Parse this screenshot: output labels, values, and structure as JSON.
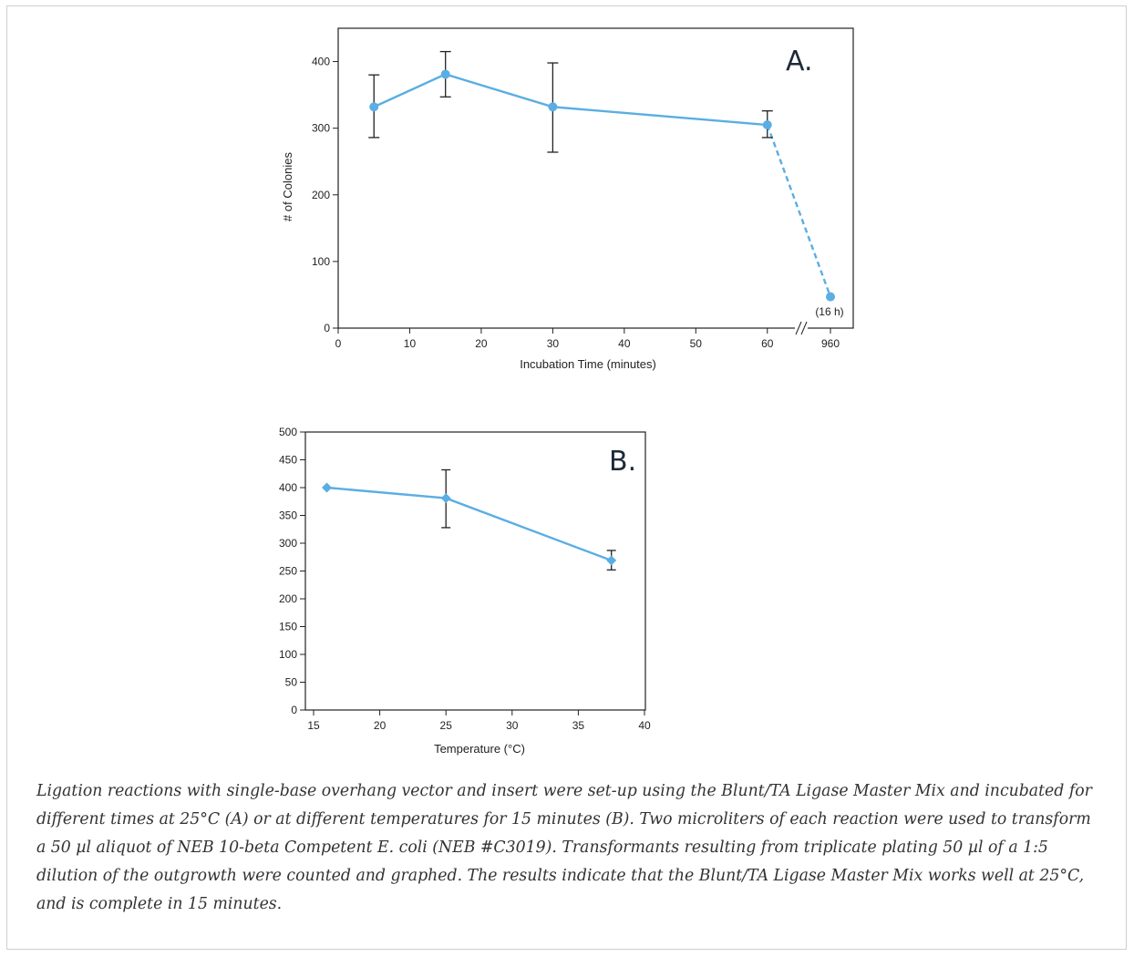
{
  "colors": {
    "series": "#5aaee3",
    "axis": "#222222",
    "errorbar": "#222222"
  },
  "chart_data": [
    {
      "type": "line",
      "panel_label": "A.",
      "xlabel": "Incubation Time (minutes)",
      "ylabel": "# of Colonies",
      "ylim": [
        0,
        450
      ],
      "xlim": [
        0,
        75
      ],
      "axis_break": true,
      "xticks": [
        "0",
        "10",
        "20",
        "30",
        "40",
        "50",
        "60",
        "960"
      ],
      "yticks": [
        "0",
        "100",
        "200",
        "300",
        "400"
      ],
      "grid": false,
      "series": [
        {
          "x": [
            5,
            15,
            30,
            60,
            960
          ],
          "values": [
            332,
            381,
            332,
            305,
            47
          ],
          "error_low": [
            286,
            347,
            264,
            286,
            null
          ],
          "error_high": [
            380,
            415,
            398,
            326,
            null
          ],
          "dashed_last_segment": true
        }
      ],
      "annotations": [
        "(16 h)"
      ]
    },
    {
      "type": "line",
      "panel_label": "B.",
      "xlabel": "Temperature (°C)",
      "ylabel": "",
      "ylim": [
        0,
        500
      ],
      "xlim": [
        14,
        40
      ],
      "xticks": [
        "15",
        "20",
        "25",
        "30",
        "35",
        "40"
      ],
      "yticks": [
        "0",
        "50",
        "100",
        "150",
        "200",
        "250",
        "300",
        "350",
        "400",
        "450",
        "500"
      ],
      "grid": false,
      "series": [
        {
          "x": [
            16,
            25,
            37.5
          ],
          "values": [
            400,
            381,
            269
          ],
          "error_low": [
            null,
            328,
            252
          ],
          "error_high": [
            null,
            432,
            287
          ]
        }
      ]
    }
  ],
  "caption": "Ligation reactions with single-base overhang vector and insert were set-up using the Blunt/TA Ligase Master Mix and incubated for different times at 25°C (A) or at different temperatures for 15 minutes (B). Two microliters of each reaction were used to transform a 50 µl aliquot of NEB 10-beta Competent E. coli (NEB #C3019). Transformants resulting from triplicate plating 50 µl of a 1:5 dilution of the outgrowth were counted and graphed. The results indicate that the Blunt/TA Ligase Master Mix works well at 25°C, and is complete in 15 minutes."
}
